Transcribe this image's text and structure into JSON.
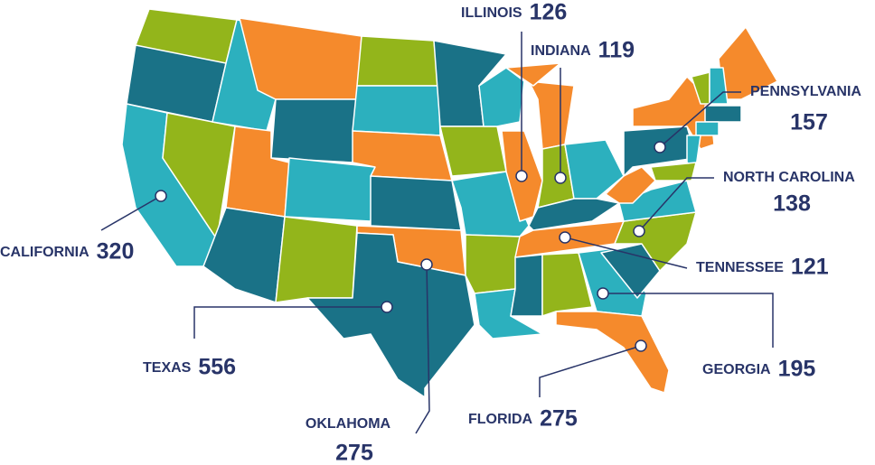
{
  "labels": [
    {
      "name": "ILLINOIS",
      "value": 126
    },
    {
      "name": "INDIANA",
      "value": 119
    },
    {
      "name": "PENNSYLVANIA",
      "value": 157
    },
    {
      "name": "NORTH CAROLINA",
      "value": 138
    },
    {
      "name": "TENNESSEE",
      "value": 121
    },
    {
      "name": "GEORGIA",
      "value": 195
    },
    {
      "name": "FLORIDA",
      "value": 275
    },
    {
      "name": "OKLAHOMA",
      "value": 275
    },
    {
      "name": "TEXAS",
      "value": 556
    },
    {
      "name": "CALIFORNIA",
      "value": 320
    }
  ]
}
